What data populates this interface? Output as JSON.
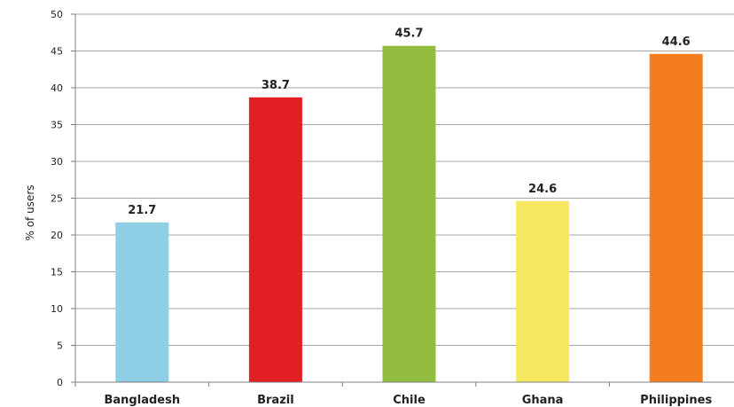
{
  "chart_data": {
    "type": "bar",
    "title": "",
    "xlabel": "",
    "ylabel": "% of users",
    "ylim": [
      0,
      50
    ],
    "yticks": [
      0,
      5,
      10,
      15,
      20,
      25,
      30,
      35,
      40,
      45,
      50
    ],
    "grid": true,
    "categories": [
      "Bangladesh",
      "Brazil",
      "Chile",
      "Ghana",
      "Philippines"
    ],
    "values": [
      21.7,
      38.7,
      45.7,
      24.6,
      44.6
    ],
    "data_labels": [
      "21.7",
      "38.7",
      "45.7",
      "24.6",
      "44.6"
    ],
    "colors": [
      "#8ecfe6",
      "#e31e24",
      "#93bd3e",
      "#f6e961",
      "#f47d20"
    ]
  }
}
